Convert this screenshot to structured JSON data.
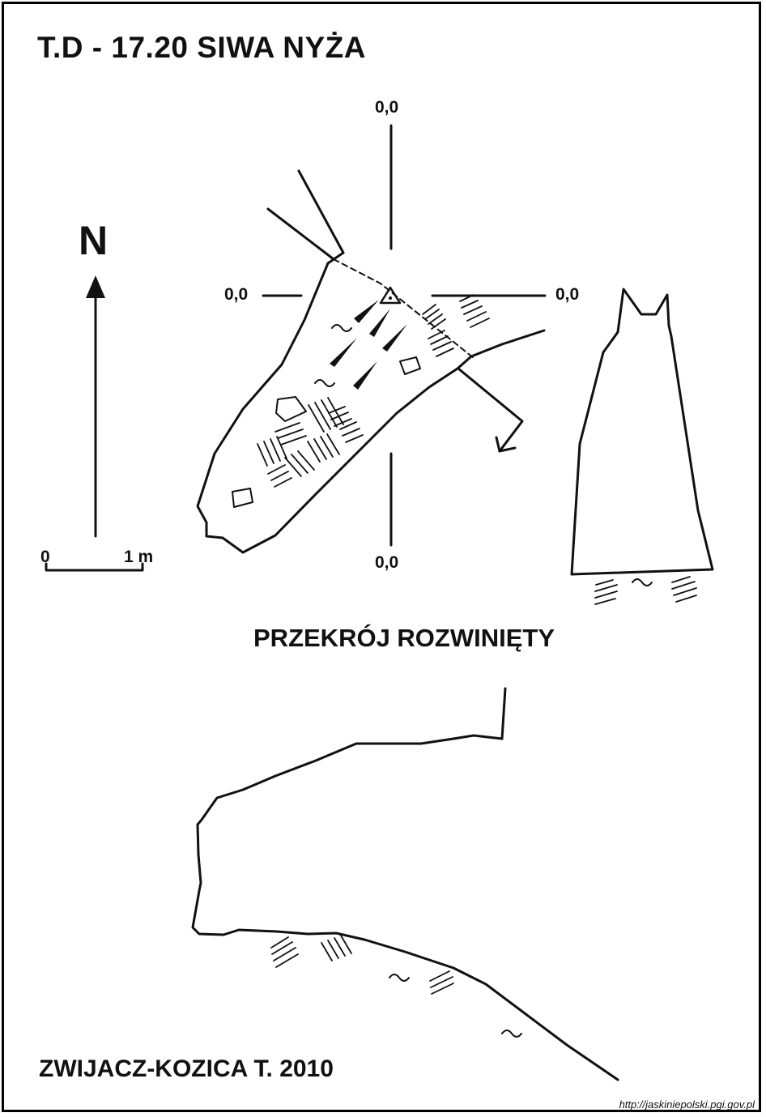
{
  "title": "T.D - 17.20  SIWA NYŻA",
  "north_label": "N",
  "coordinates": {
    "top": "0,0",
    "left": "0,0",
    "right": "0,0",
    "bottom": "0,0"
  },
  "scale": {
    "zero": "0",
    "one": "1 m"
  },
  "section_title": "PRZEKRÓJ ROZWINIĘTY",
  "author": "ZWIJACZ-KOZICA T. 2010",
  "source_url": "http://jaskiniepolski.pgi.gov.pl",
  "colors": {
    "ink": "#111111",
    "background": "#ffffff"
  },
  "symbols": [
    "north-arrow",
    "survey-station-triangle",
    "slope-arrows",
    "rock-blocks",
    "clay-tilde",
    "rubble-hatching",
    "direction-arrow"
  ]
}
